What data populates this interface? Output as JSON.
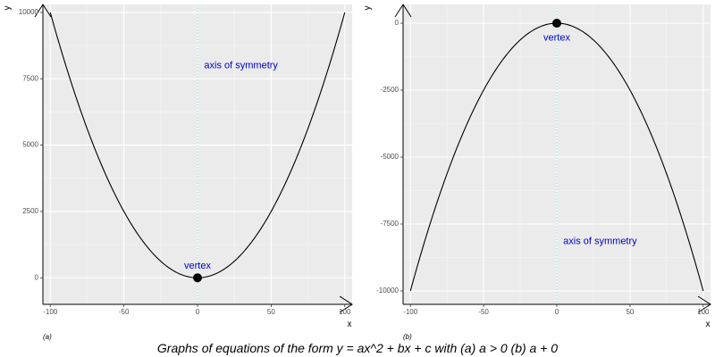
{
  "caption": "Graphs of equations of the form y = ax^2 + bx + c with (a) a > 0 (b) a + 0",
  "colors": {
    "panel_bg": "#ebebeb",
    "grid_major": "#ffffff",
    "grid_minor": "#f5f5f5",
    "curve": "#000000",
    "annotation": "#0000cd",
    "symmetry_line": "#8ee5ee",
    "vertex_point": "#000000"
  },
  "chart_data": [
    {
      "type": "line",
      "panel_label": "(a)",
      "xlabel": "x",
      "ylabel": "y",
      "xlim": [
        -105,
        105
      ],
      "ylim": [
        -1000,
        10300
      ],
      "x_ticks": [
        -100,
        -50,
        0,
        50,
        100
      ],
      "x_tick_labels": [
        "-100",
        "-50",
        "0",
        "50",
        "100"
      ],
      "y_ticks": [
        0,
        2500,
        5000,
        7500,
        10000
      ],
      "y_tick_labels": [
        "0",
        "2500",
        "5000",
        "7500",
        "10000"
      ],
      "grid": true,
      "equation": {
        "a": 1,
        "b": 0,
        "c": 0
      },
      "x_range": [
        -100,
        100
      ],
      "vertex": {
        "x": 0,
        "y": 0,
        "label": "vertex",
        "label_x": 0,
        "label_y": 450
      },
      "axis_of_symmetry": {
        "x": 0,
        "label": "axis of symmetry",
        "label_x": 30,
        "label_y": 8000
      }
    },
    {
      "type": "line",
      "panel_label": "(b)",
      "xlabel": "x",
      "ylabel": "y",
      "xlim": [
        -105,
        105
      ],
      "ylim": [
        -10500,
        700
      ],
      "x_ticks": [
        -100,
        -50,
        0,
        50,
        100
      ],
      "x_tick_labels": [
        "-100",
        "-50",
        "0",
        "50",
        "100"
      ],
      "y_ticks": [
        -10000,
        -7500,
        -5000,
        -2500,
        0
      ],
      "y_tick_labels": [
        "-10000",
        "-7500",
        "-5000",
        "-2500",
        "0"
      ],
      "grid": true,
      "equation": {
        "a": -1,
        "b": 0,
        "c": 0
      },
      "x_range": [
        -100,
        100
      ],
      "vertex": {
        "x": 0,
        "y": 0,
        "label": "vertex",
        "label_x": 0,
        "label_y": -550
      },
      "axis_of_symmetry": {
        "x": 0,
        "label": "axis of symmetry",
        "label_x": 30,
        "label_y": -8150
      }
    }
  ]
}
